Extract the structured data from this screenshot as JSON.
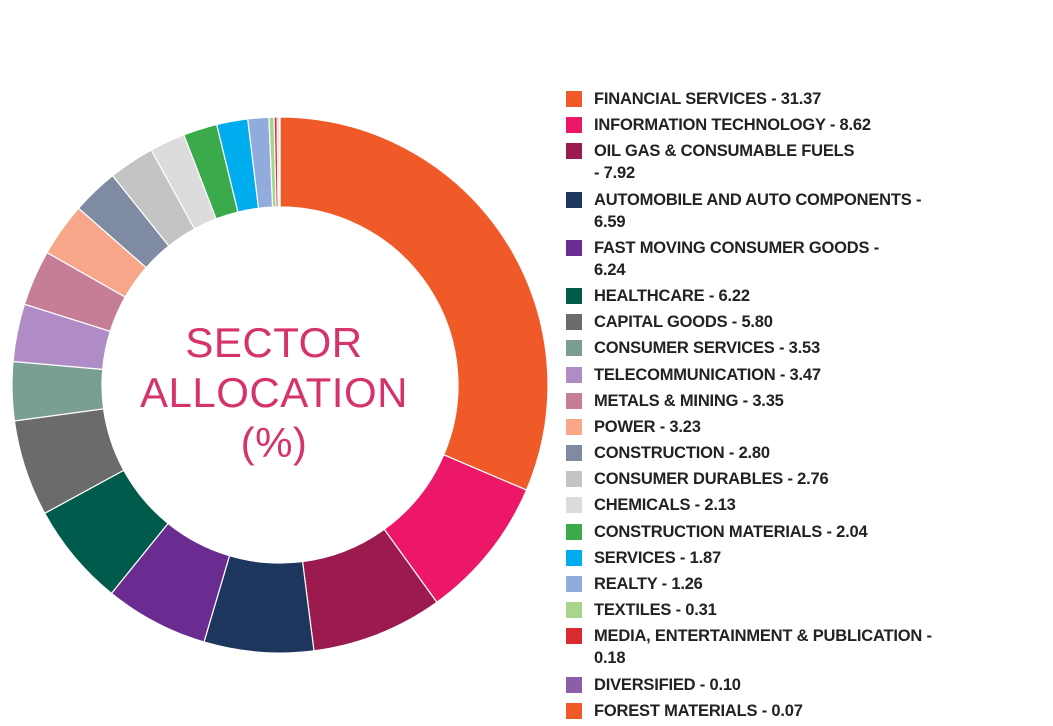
{
  "chart_data": {
    "type": "pie",
    "donut": true,
    "center_text": [
      "SECTOR",
      "ALLOCATION",
      "(%)"
    ],
    "legend_position": "right",
    "slices": [
      {
        "name": "FINANCIAL SERVICES",
        "value": 31.37,
        "label": "FINANCIAL SERVICES - 31.37",
        "color": "#f05a28"
      },
      {
        "name": "INFORMATION TECHNOLOGY",
        "value": 8.62,
        "label": "INFORMATION TECHNOLOGY - 8.62",
        "color": "#ec1766"
      },
      {
        "name": "OIL GAS & CONSUMABLE FUELS",
        "value": 7.92,
        "label": "OIL GAS & CONSUMABLE FUELS - 7.92",
        "color": "#9b1b4f"
      },
      {
        "name": "AUTOMOBILE AND AUTO COMPONENTS",
        "value": 6.59,
        "label": "AUTOMOBILE AND AUTO COMPONENTS - 6.59",
        "color": "#1d365e"
      },
      {
        "name": "FAST MOVING CONSUMER GOODS",
        "value": 6.24,
        "label": "FAST MOVING CONSUMER GOODS - 6.24",
        "color": "#6b2c91"
      },
      {
        "name": "HEALTHCARE",
        "value": 6.22,
        "label": "HEALTHCARE - 6.22",
        "color": "#005b4c"
      },
      {
        "name": "CAPITAL GOODS",
        "value": 5.8,
        "label": "CAPITAL GOODS - 5.80",
        "color": "#6b6b6b"
      },
      {
        "name": "CONSUMER SERVICES",
        "value": 3.53,
        "label": "CONSUMER SERVICES - 3.53",
        "color": "#7a9e94"
      },
      {
        "name": "TELECOMMUNICATION",
        "value": 3.47,
        "label": "TELECOMMUNICATION - 3.47",
        "color": "#b08cc6"
      },
      {
        "name": "METALS & MINING",
        "value": 3.35,
        "label": "METALS & MINING - 3.35",
        "color": "#c67e98"
      },
      {
        "name": "POWER",
        "value": 3.23,
        "label": "POWER - 3.23",
        "color": "#f7a68a"
      },
      {
        "name": "CONSTRUCTION",
        "value": 2.8,
        "label": "CONSTRUCTION - 2.80",
        "color": "#7f8aa3"
      },
      {
        "name": "CONSUMER DURABLES",
        "value": 2.76,
        "label": "CONSUMER DURABLES - 2.76",
        "color": "#c4c4c4"
      },
      {
        "name": "CHEMICALS",
        "value": 2.13,
        "label": "CHEMICALS - 2.13",
        "color": "#dcdcdc"
      },
      {
        "name": "CONSTRUCTION MATERIALS",
        "value": 2.04,
        "label": "CONSTRUCTION MATERIALS - 2.04",
        "color": "#3aaa4a"
      },
      {
        "name": "SERVICES",
        "value": 1.87,
        "label": "SERVICES - 1.87",
        "color": "#00aeef"
      },
      {
        "name": "REALTY",
        "value": 1.26,
        "label": "REALTY - 1.26",
        "color": "#90abdc"
      },
      {
        "name": "TEXTILES",
        "value": 0.31,
        "label": "TEXTILES - 0.31",
        "color": "#a8d58a"
      },
      {
        "name": "MEDIA, ENTERTAINMENT & PUBLICATION",
        "value": 0.18,
        "label": "MEDIA, ENTERTAINMENT & PUBLICATION - 0.18",
        "color": "#d92b30"
      },
      {
        "name": "DIVERSIFIED",
        "value": 0.1,
        "label": "DIVERSIFIED - 0.10",
        "color": "#8b5fa8"
      },
      {
        "name": "FOREST MATERIALS",
        "value": 0.07,
        "label": "FOREST MATERIALS - 0.07",
        "color": "#f05a28"
      }
    ]
  }
}
